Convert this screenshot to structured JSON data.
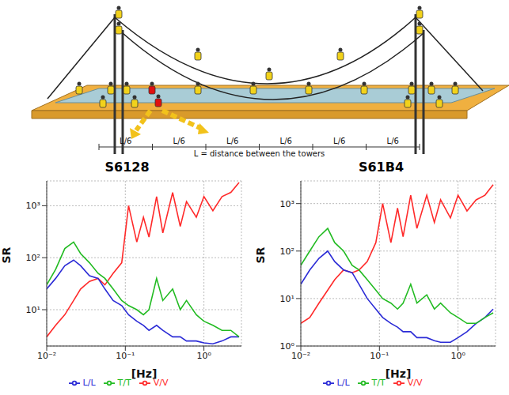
{
  "diagram": {
    "segments": [
      "L/6",
      "L/6",
      "L/6",
      "L/6",
      "L/6",
      "L/6"
    ],
    "span_label": "L = distance between the towers"
  },
  "chart_data": [
    {
      "type": "line",
      "title": "S6128",
      "x_label": "[Hz]",
      "y_label": "SR",
      "log": true,
      "grid": true,
      "legend": "bottom",
      "xlim": [
        0.01,
        3
      ],
      "xticks": [
        {
          "value": 0.01,
          "label": "10⁻²"
        },
        {
          "value": 0.1,
          "label": "10⁻¹"
        },
        {
          "value": 1,
          "label": "10⁰"
        }
      ],
      "ylim": [
        2,
        3000
      ],
      "yticks": [
        {
          "value": 10,
          "label": "10¹"
        },
        {
          "value": 100,
          "label": "10²"
        },
        {
          "value": 1000,
          "label": "10³"
        }
      ],
      "x": [
        0.01,
        0.013,
        0.017,
        0.022,
        0.027,
        0.035,
        0.045,
        0.055,
        0.07,
        0.09,
        0.11,
        0.14,
        0.17,
        0.2,
        0.25,
        0.3,
        0.4,
        0.5,
        0.6,
        0.8,
        1.0,
        1.3,
        1.7,
        2.2,
        2.8
      ],
      "series": [
        {
          "name": "V/V",
          "color": "#ff2a2a",
          "values": [
            3,
            5,
            8,
            15,
            25,
            35,
            40,
            30,
            50,
            80,
            1000,
            200,
            600,
            250,
            1500,
            300,
            1800,
            400,
            1200,
            600,
            1500,
            800,
            1500,
            1800,
            2800
          ]
        },
        {
          "name": "L/L",
          "color": "#2b2bd6",
          "values": [
            25,
            40,
            70,
            90,
            70,
            45,
            40,
            25,
            15,
            12,
            8,
            6,
            5,
            4,
            5,
            4,
            3,
            3,
            2.5,
            2.5,
            2.3,
            2.2,
            2.5,
            3,
            3
          ]
        },
        {
          "name": "T/T",
          "color": "#22bb22",
          "values": [
            30,
            60,
            150,
            200,
            120,
            80,
            50,
            40,
            25,
            15,
            12,
            10,
            8,
            10,
            40,
            15,
            25,
            10,
            15,
            8,
            6,
            5,
            4,
            4,
            3
          ]
        }
      ]
    },
    {
      "type": "line",
      "title": "S61B4",
      "x_label": "[Hz]",
      "y_label": "SR",
      "log": true,
      "grid": true,
      "legend": "bottom",
      "xlim": [
        0.01,
        3
      ],
      "xticks": [
        {
          "value": 0.01,
          "label": "10⁻²"
        },
        {
          "value": 0.1,
          "label": "10⁻¹"
        },
        {
          "value": 1,
          "label": "10⁰"
        }
      ],
      "ylim": [
        1,
        3000
      ],
      "yticks": [
        {
          "value": 1,
          "label": "10⁰"
        },
        {
          "value": 10,
          "label": "10¹"
        },
        {
          "value": 100,
          "label": "10²"
        },
        {
          "value": 1000,
          "label": "10³"
        }
      ],
      "x": [
        0.01,
        0.013,
        0.017,
        0.022,
        0.027,
        0.035,
        0.045,
        0.055,
        0.07,
        0.09,
        0.11,
        0.14,
        0.17,
        0.2,
        0.25,
        0.3,
        0.4,
        0.5,
        0.6,
        0.8,
        1.0,
        1.3,
        1.7,
        2.2,
        2.8
      ],
      "series": [
        {
          "name": "V/V",
          "color": "#ff2a2a",
          "values": [
            3,
            4,
            8,
            15,
            25,
            40,
            35,
            40,
            60,
            150,
            1000,
            150,
            800,
            200,
            1500,
            300,
            1500,
            400,
            1200,
            500,
            1500,
            700,
            1200,
            1500,
            2500
          ]
        },
        {
          "name": "L/L",
          "color": "#2b2bd6",
          "values": [
            20,
            40,
            70,
            100,
            60,
            40,
            35,
            20,
            10,
            6,
            4,
            3,
            2.5,
            2,
            2,
            1.5,
            1.5,
            1.3,
            1.2,
            1.2,
            1.5,
            2,
            3,
            4,
            6
          ]
        },
        {
          "name": "T/T",
          "color": "#22bb22",
          "values": [
            50,
            100,
            200,
            300,
            150,
            100,
            50,
            40,
            25,
            15,
            10,
            8,
            6,
            8,
            20,
            8,
            12,
            6,
            8,
            5,
            4,
            3,
            3,
            4,
            5
          ]
        }
      ]
    }
  ]
}
